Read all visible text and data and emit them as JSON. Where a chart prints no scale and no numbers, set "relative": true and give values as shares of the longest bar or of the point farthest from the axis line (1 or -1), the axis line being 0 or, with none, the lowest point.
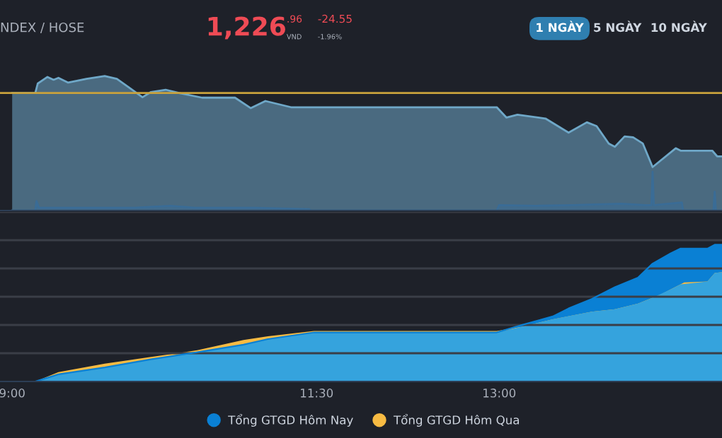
{
  "chart_data": [
    {
      "type": "other",
      "annotations": [
        "NDEX / HOSE",
        "1,226",
        ".96",
        "VND",
        "-24.55",
        "-1.96%",
        "1 NGÀY",
        "5 NGÀY",
        "10 NGÀY"
      ]
    },
    {
      "type": "area",
      "relative": true,
      "tick_labels": false,
      "grid": false,
      "legend": false,
      "xlim": [
        8.9,
        14.83
      ],
      "ref_lines": [
        {
          "axis": "y",
          "value": 0.874,
          "color": "#c9a23c"
        }
      ],
      "series": [
        {
          "type": "area",
          "color": "#6fa8c8",
          "x": [
            9.0,
            9.19,
            9.21,
            9.29,
            9.34,
            9.38,
            9.46,
            9.61,
            9.76,
            9.86,
            9.97,
            10.07,
            10.14,
            10.26,
            10.37,
            10.56,
            10.83,
            10.96,
            11.08,
            11.29,
            11.44,
            12.98,
            13.06,
            13.15,
            13.38,
            13.57,
            13.72,
            13.8,
            13.9,
            13.95,
            14.03,
            14.1,
            14.18,
            14.26,
            14.45,
            14.49,
            14.75,
            14.79,
            14.83
          ],
          "values": [
            0.874,
            0.874,
            0.944,
            0.993,
            0.972,
            0.986,
            0.951,
            0.979,
            1.0,
            0.979,
            0.908,
            0.842,
            0.881,
            0.898,
            0.874,
            0.839,
            0.839,
            0.761,
            0.814,
            0.768,
            0.768,
            0.768,
            0.691,
            0.712,
            0.684,
            0.579,
            0.656,
            0.628,
            0.498,
            0.474,
            0.551,
            0.544,
            0.498,
            0.323,
            0.463,
            0.445,
            0.445,
            0.403,
            0.403
          ]
        },
        {
          "type": "area",
          "color": "#3a6c96",
          "x": [
            9.0,
            9.19,
            9.2,
            9.22,
            10.0,
            10.3,
            10.5,
            11.0,
            11.44,
            11.45,
            12.98,
            13.0,
            13.3,
            13.6,
            14.0,
            14.2,
            14.25,
            14.26,
            14.27,
            14.5,
            14.51,
            14.76,
            14.77,
            14.78,
            14.83
          ],
          "values": [
            0,
            0,
            0.07,
            0.02,
            0.02,
            0.035,
            0.02,
            0.02,
            0.01,
            0,
            0,
            0.04,
            0.035,
            0.04,
            0.05,
            0.04,
            0.04,
            0.288,
            0.04,
            0.06,
            0,
            0,
            0.14,
            0,
            0
          ]
        }
      ]
    },
    {
      "type": "area",
      "relative": true,
      "tick_labels": "x",
      "grid": "y",
      "legend": "bottom",
      "xlim": [
        8.9,
        14.83
      ],
      "xticks": [
        {
          "value": 9.0,
          "label": "9:00"
        },
        {
          "value": 11.5,
          "label": "11:30"
        },
        {
          "value": 13.0,
          "label": "13:00"
        }
      ],
      "series": [
        {
          "name": "Tổng GTGD Hôm Nay",
          "color": "#0a80d4",
          "x": [
            9.0,
            9.19,
            9.38,
            9.76,
            10.14,
            10.52,
            10.9,
            11.1,
            11.48,
            12.98,
            13.19,
            13.44,
            13.57,
            13.76,
            13.95,
            14.14,
            14.26,
            14.41,
            14.49,
            14.71,
            14.77,
            14.83
          ],
          "values": [
            0,
            0,
            0.052,
            0.103,
            0.162,
            0.214,
            0.269,
            0.31,
            0.359,
            0.359,
            0.414,
            0.476,
            0.534,
            0.603,
            0.69,
            0.759,
            0.862,
            0.938,
            0.972,
            0.972,
            1.0,
            1.0
          ]
        },
        {
          "name": "Tổng GTGD Hôm Qua",
          "color": "#f7bb43",
          "x": [
            9.0,
            9.19,
            9.38,
            9.76,
            10.14,
            10.52,
            10.9,
            11.1,
            11.48,
            12.98,
            13.19,
            13.44,
            13.76,
            13.95,
            14.14,
            14.33,
            14.52,
            14.71,
            14.77,
            14.83
          ],
          "values": [
            0,
            0,
            0.069,
            0.131,
            0.179,
            0.228,
            0.303,
            0.331,
            0.369,
            0.369,
            0.4,
            0.455,
            0.51,
            0.528,
            0.569,
            0.638,
            0.724,
            0.731,
            0.793,
            0.8
          ]
        }
      ]
    }
  ]
}
